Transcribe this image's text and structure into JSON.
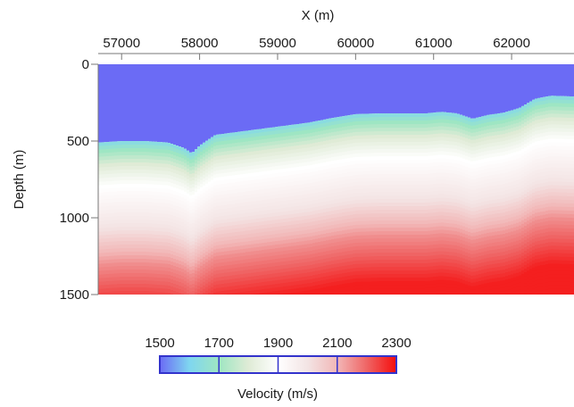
{
  "chart_data": {
    "type": "heatmap",
    "title": "",
    "xlabel": "X (m)",
    "ylabel": "Depth  (m)",
    "x_axis_position": "top",
    "xlim": [
      56700,
      62800
    ],
    "ylim": [
      0,
      1500
    ],
    "y_inverted": true,
    "x_ticks": [
      57000,
      58000,
      59000,
      60000,
      61000,
      62000
    ],
    "x_tick_labels": [
      "57000",
      "58000",
      "59000",
      "60000",
      "61000",
      "62000"
    ],
    "y_ticks": [
      0,
      500,
      1000,
      1500
    ],
    "y_tick_labels": [
      "0",
      "500",
      "1000",
      "1500"
    ],
    "grid": false,
    "water_velocity": 1500,
    "water_bottom": {
      "x": [
        56700,
        57000,
        57300,
        57600,
        57800,
        57900,
        58000,
        58200,
        58500,
        58800,
        59100,
        59400,
        59700,
        60000,
        60300,
        60600,
        60900,
        61100,
        61300,
        61500,
        61700,
        61900,
        62100,
        62300,
        62500,
        62800
      ],
      "depth": [
        510,
        500,
        500,
        510,
        545,
        580,
        530,
        460,
        440,
        420,
        400,
        380,
        350,
        325,
        320,
        320,
        320,
        310,
        320,
        355,
        330,
        315,
        285,
        225,
        205,
        210
      ]
    },
    "velocity_gradient_depth_offsets": [
      0,
      60,
      150,
      290,
      560,
      800,
      1100
    ],
    "velocity_gradient_values": [
      1620,
      1700,
      1800,
      1900,
      2000,
      2150,
      2280
    ],
    "colorbar": {
      "title": "Velocity (m/s)",
      "min": 1500,
      "max": 2300,
      "ticks": [
        1500,
        1700,
        1900,
        2100,
        2300
      ],
      "tick_labels": [
        "1500",
        "1700",
        "1900",
        "2100",
        "2300"
      ],
      "placement": "bottom",
      "colormap": [
        {
          "v": 1500,
          "color": "#6b6bf5"
        },
        {
          "v": 1600,
          "color": "#7fd6f0"
        },
        {
          "v": 1700,
          "color": "#9fe6c2"
        },
        {
          "v": 1800,
          "color": "#dfebd6"
        },
        {
          "v": 1900,
          "color": "#ffffff"
        },
        {
          "v": 2000,
          "color": "#f3e4e4"
        },
        {
          "v": 2100,
          "color": "#f2b7b7"
        },
        {
          "v": 2200,
          "color": "#ef6565"
        },
        {
          "v": 2300,
          "color": "#f50d0d"
        }
      ],
      "divider_color": "#3333cc"
    }
  }
}
